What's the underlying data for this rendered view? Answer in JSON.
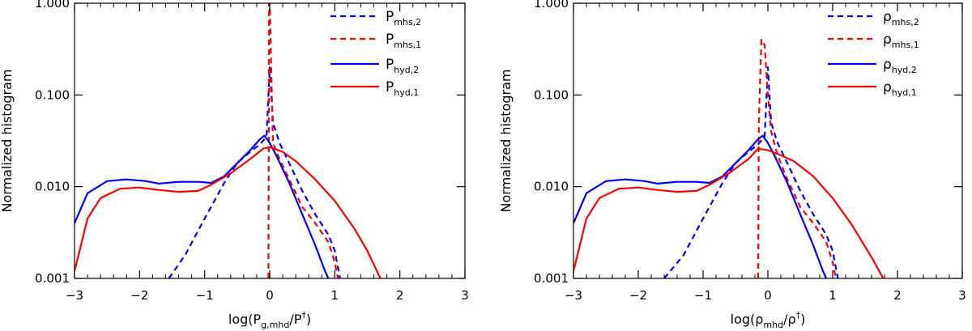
{
  "colors": {
    "blue": "#0000ff",
    "red": "#ff0000",
    "axis": "#000000"
  },
  "chart_data": [
    {
      "type": "line",
      "ylabel": "Normalized histogram",
      "xlabel": {
        "main": "log(P",
        "sub": "g,mhd",
        "rest": "/P",
        "sup": "†",
        "close": ")"
      },
      "xlim": [
        -3,
        3
      ],
      "ylim": [
        0.001,
        1.0
      ],
      "yscale": "log",
      "xticks": [
        -3,
        -2,
        -1,
        0,
        1,
        2,
        3
      ],
      "xtick_labels": [
        "−3",
        "−2",
        "−1",
        "0",
        "1",
        "2",
        "3"
      ],
      "yticks": [
        0.001,
        0.01,
        0.1,
        1.0
      ],
      "ytick_labels": [
        "0.001",
        "0.010",
        "0.100",
        "1.000"
      ],
      "legend_position": "top-right",
      "series": [
        {
          "name": "P_mhs,2",
          "label_main": "P",
          "label_sub": "mhs,2",
          "color": "#0000ff",
          "dash": "dashed",
          "points": [
            [
              -1.55,
              0.001
            ],
            [
              -1.3,
              0.0018
            ],
            [
              -1.0,
              0.0045
            ],
            [
              -0.7,
              0.011
            ],
            [
              -0.5,
              0.018
            ],
            [
              -0.3,
              0.024
            ],
            [
              -0.15,
              0.029
            ],
            [
              -0.05,
              0.035
            ],
            [
              0.0,
              0.2
            ],
            [
              0.05,
              0.05
            ],
            [
              0.15,
              0.03
            ],
            [
              0.3,
              0.018
            ],
            [
              0.5,
              0.009
            ],
            [
              0.7,
              0.005
            ],
            [
              0.9,
              0.003
            ],
            [
              1.0,
              0.002
            ],
            [
              1.08,
              0.001
            ]
          ]
        },
        {
          "name": "P_mhs,1",
          "label_main": "P",
          "label_sub": "mhs,1",
          "color": "#ff0000",
          "dash": "dashed",
          "points": [
            [
              -0.02,
              0.001
            ],
            [
              -0.01,
              1.0
            ],
            [
              0.0,
              1.0
            ],
            [
              0.01,
              0.5
            ],
            [
              0.05,
              0.03
            ],
            [
              0.15,
              0.02
            ],
            [
              0.3,
              0.012
            ],
            [
              0.5,
              0.006
            ],
            [
              0.7,
              0.004
            ],
            [
              0.9,
              0.0025
            ],
            [
              1.0,
              0.0015
            ],
            [
              1.05,
              0.001
            ]
          ]
        },
        {
          "name": "P_hyd,2",
          "label_main": "P",
          "label_sub": "hyd,2",
          "color": "#0000ff",
          "dash": "solid",
          "points": [
            [
              -3.0,
              0.004
            ],
            [
              -2.8,
              0.0085
            ],
            [
              -2.5,
              0.0115
            ],
            [
              -2.2,
              0.012
            ],
            [
              -1.9,
              0.0115
            ],
            [
              -1.7,
              0.0108
            ],
            [
              -1.4,
              0.0113
            ],
            [
              -1.1,
              0.0113
            ],
            [
              -0.9,
              0.011
            ],
            [
              -0.7,
              0.013
            ],
            [
              -0.5,
              0.018
            ],
            [
              -0.3,
              0.025
            ],
            [
              -0.15,
              0.033
            ],
            [
              -0.08,
              0.036
            ],
            [
              0.0,
              0.03
            ],
            [
              0.1,
              0.022
            ],
            [
              0.3,
              0.011
            ],
            [
              0.5,
              0.005
            ],
            [
              0.7,
              0.0023
            ],
            [
              0.85,
              0.0012
            ],
            [
              0.9,
              0.001
            ]
          ]
        },
        {
          "name": "P_hyd,1",
          "label_main": "P",
          "label_sub": "hyd,1",
          "color": "#ff0000",
          "dash": "solid",
          "points": [
            [
              -3.0,
              0.0012
            ],
            [
              -2.8,
              0.0045
            ],
            [
              -2.6,
              0.0075
            ],
            [
              -2.3,
              0.0095
            ],
            [
              -2.0,
              0.0098
            ],
            [
              -1.7,
              0.0092
            ],
            [
              -1.4,
              0.0088
            ],
            [
              -1.1,
              0.009
            ],
            [
              -0.9,
              0.0105
            ],
            [
              -0.6,
              0.014
            ],
            [
              -0.3,
              0.02
            ],
            [
              -0.1,
              0.026
            ],
            [
              0.0,
              0.027
            ],
            [
              0.2,
              0.024
            ],
            [
              0.4,
              0.019
            ],
            [
              0.7,
              0.012
            ],
            [
              1.0,
              0.007
            ],
            [
              1.3,
              0.0035
            ],
            [
              1.5,
              0.002
            ],
            [
              1.7,
              0.001
            ]
          ]
        }
      ]
    },
    {
      "type": "line",
      "ylabel": "Normalized histogram",
      "xlabel": {
        "main": "log(ρ",
        "sub": "mhd",
        "rest": "/ρ",
        "sup": "†",
        "close": ")"
      },
      "xlim": [
        -3,
        3
      ],
      "ylim": [
        0.001,
        1.0
      ],
      "yscale": "log",
      "xticks": [
        -3,
        -2,
        -1,
        0,
        1,
        2,
        3
      ],
      "xtick_labels": [
        "−3",
        "−2",
        "−1",
        "0",
        "1",
        "2",
        "3"
      ],
      "yticks": [
        0.001,
        0.01,
        0.1,
        1.0
      ],
      "ytick_labels": [
        "0.001",
        "0.010",
        "0.100",
        "1.000"
      ],
      "legend_position": "top-right",
      "series": [
        {
          "name": "ρ_mhs,2",
          "label_main": "ρ",
          "label_sub": "mhs,2",
          "color": "#0000ff",
          "dash": "dashed",
          "points": [
            [
              -1.6,
              0.001
            ],
            [
              -1.3,
              0.0018
            ],
            [
              -1.0,
              0.0045
            ],
            [
              -0.7,
              0.011
            ],
            [
              -0.5,
              0.018
            ],
            [
              -0.3,
              0.024
            ],
            [
              -0.15,
              0.029
            ],
            [
              -0.05,
              0.035
            ],
            [
              0.0,
              0.2
            ],
            [
              0.05,
              0.05
            ],
            [
              0.15,
              0.03
            ],
            [
              0.3,
              0.018
            ],
            [
              0.5,
              0.009
            ],
            [
              0.7,
              0.005
            ],
            [
              0.9,
              0.003
            ],
            [
              1.0,
              0.002
            ],
            [
              1.08,
              0.001
            ]
          ]
        },
        {
          "name": "ρ_mhs,1",
          "label_main": "ρ",
          "label_sub": "mhs,1",
          "color": "#ff0000",
          "dash": "dashed",
          "points": [
            [
              -0.15,
              0.001
            ],
            [
              -0.14,
              0.05
            ],
            [
              -0.1,
              0.4
            ],
            [
              -0.05,
              0.35
            ],
            [
              0.0,
              0.1
            ],
            [
              0.05,
              0.04
            ],
            [
              0.15,
              0.022
            ],
            [
              0.3,
              0.012
            ],
            [
              0.5,
              0.006
            ],
            [
              0.7,
              0.004
            ],
            [
              0.9,
              0.0025
            ],
            [
              1.0,
              0.0015
            ],
            [
              1.05,
              0.001
            ]
          ]
        },
        {
          "name": "ρ_hyd,2",
          "label_main": "ρ",
          "label_sub": "hyd,2",
          "color": "#0000ff",
          "dash": "solid",
          "points": [
            [
              -3.0,
              0.004
            ],
            [
              -2.8,
              0.0085
            ],
            [
              -2.5,
              0.0115
            ],
            [
              -2.2,
              0.012
            ],
            [
              -1.9,
              0.0115
            ],
            [
              -1.7,
              0.0108
            ],
            [
              -1.4,
              0.0113
            ],
            [
              -1.1,
              0.0113
            ],
            [
              -0.9,
              0.011
            ],
            [
              -0.7,
              0.013
            ],
            [
              -0.5,
              0.018
            ],
            [
              -0.3,
              0.025
            ],
            [
              -0.15,
              0.033
            ],
            [
              -0.08,
              0.036
            ],
            [
              0.0,
              0.03
            ],
            [
              0.1,
              0.022
            ],
            [
              0.3,
              0.011
            ],
            [
              0.5,
              0.005
            ],
            [
              0.7,
              0.0023
            ],
            [
              0.85,
              0.0012
            ],
            [
              0.9,
              0.001
            ]
          ]
        },
        {
          "name": "ρ_hyd,1",
          "label_main": "ρ",
          "label_sub": "hyd,1",
          "color": "#ff0000",
          "dash": "solid",
          "points": [
            [
              -3.0,
              0.0012
            ],
            [
              -2.8,
              0.0045
            ],
            [
              -2.6,
              0.0075
            ],
            [
              -2.3,
              0.0095
            ],
            [
              -2.0,
              0.0098
            ],
            [
              -1.7,
              0.0092
            ],
            [
              -1.4,
              0.0088
            ],
            [
              -1.1,
              0.009
            ],
            [
              -0.9,
              0.0105
            ],
            [
              -0.6,
              0.014
            ],
            [
              -0.3,
              0.02
            ],
            [
              -0.15,
              0.026
            ],
            [
              0.0,
              0.025
            ],
            [
              0.2,
              0.022
            ],
            [
              0.4,
              0.019
            ],
            [
              0.7,
              0.013
            ],
            [
              1.0,
              0.0075
            ],
            [
              1.3,
              0.0038
            ],
            [
              1.6,
              0.0017
            ],
            [
              1.78,
              0.001
            ]
          ]
        }
      ]
    }
  ]
}
